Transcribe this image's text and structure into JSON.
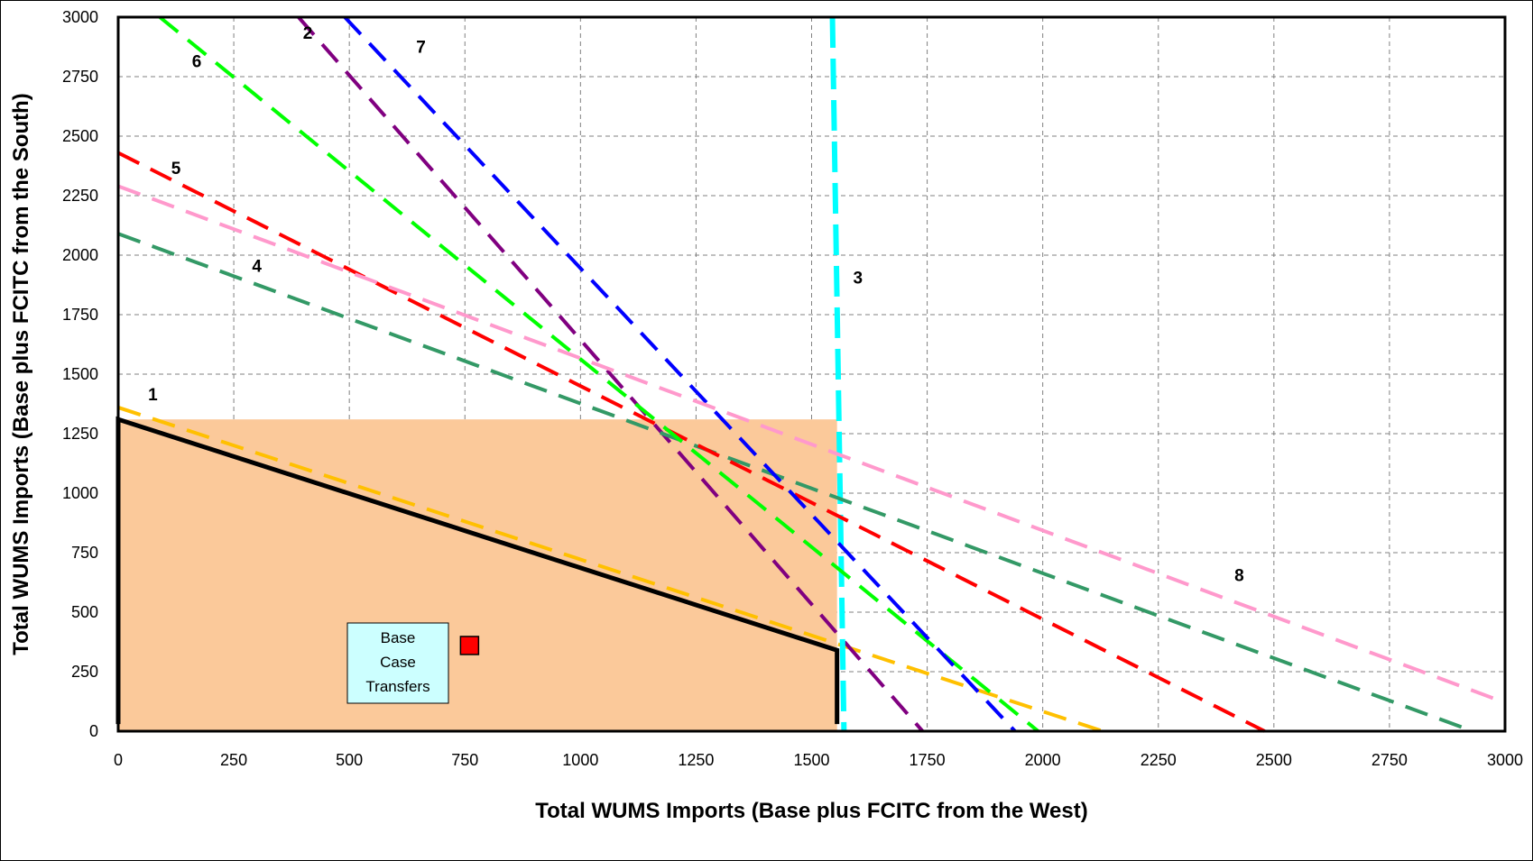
{
  "chart_data": {
    "type": "line",
    "xlabel": "Total WUMS Imports (Base plus FCITC from the West)",
    "ylabel": "Total WUMS Imports (Base plus FCITC from the South)",
    "xlim": [
      0,
      3000
    ],
    "ylim": [
      0,
      3000
    ],
    "x_ticks": [
      0,
      250,
      500,
      750,
      1000,
      1250,
      1500,
      1750,
      2000,
      2250,
      2500,
      2750,
      3000
    ],
    "y_ticks": [
      0,
      250,
      500,
      750,
      1000,
      1250,
      1500,
      1750,
      2000,
      2250,
      2500,
      2750,
      3000
    ],
    "grid": true,
    "series": [
      {
        "name": "1",
        "color": "#FFC000",
        "points": [
          [
            0,
            1360
          ],
          [
            2130,
            0
          ]
        ]
      },
      {
        "name": "2",
        "color": "#800080",
        "points": [
          [
            390,
            3000
          ],
          [
            1740,
            0
          ]
        ]
      },
      {
        "name": "3",
        "color": "#00FFFF",
        "points": [
          [
            1545,
            3000
          ],
          [
            1570,
            0
          ]
        ]
      },
      {
        "name": "4",
        "color": "#339966",
        "points": [
          [
            0,
            2090
          ],
          [
            2930,
            0
          ]
        ]
      },
      {
        "name": "5",
        "color": "#FF0000",
        "points": [
          [
            0,
            2430
          ],
          [
            2480,
            0
          ]
        ]
      },
      {
        "name": "6",
        "color": "#00FF00",
        "points": [
          [
            90,
            3000
          ],
          [
            1990,
            0
          ]
        ]
      },
      {
        "name": "7",
        "color": "#0000FF",
        "points": [
          [
            490,
            3000
          ],
          [
            1940,
            0
          ]
        ]
      },
      {
        "name": "8",
        "color": "#FF99CC",
        "points": [
          [
            0,
            2290
          ],
          [
            3000,
            120
          ]
        ]
      }
    ],
    "series_label_positions": [
      {
        "name": "1",
        "x": 75,
        "y": 1390
      },
      {
        "name": "2",
        "x": 410,
        "y": 2910
      },
      {
        "name": "3",
        "x": 1600,
        "y": 1880
      },
      {
        "name": "4",
        "x": 300,
        "y": 1930
      },
      {
        "name": "5",
        "x": 125,
        "y": 2340
      },
      {
        "name": "6",
        "x": 170,
        "y": 2790
      },
      {
        "name": "7",
        "x": 655,
        "y": 2850
      },
      {
        "name": "8",
        "x": 2425,
        "y": 630
      }
    ],
    "feasible_region": {
      "fill": "#FBC99A",
      "bounds": {
        "x": [
          0,
          1555
        ],
        "y": [
          0,
          1310
        ]
      },
      "boundary": [
        [
          0,
          30
        ],
        [
          0,
          1310
        ],
        [
          1555,
          340
        ],
        [
          1555,
          30
        ]
      ]
    },
    "base_case": {
      "label_lines": [
        "Base",
        "Case",
        "Transfers"
      ],
      "point": [
        760,
        360
      ],
      "point_color": "#FF0000",
      "box_fill": "#CCFFFF"
    }
  }
}
